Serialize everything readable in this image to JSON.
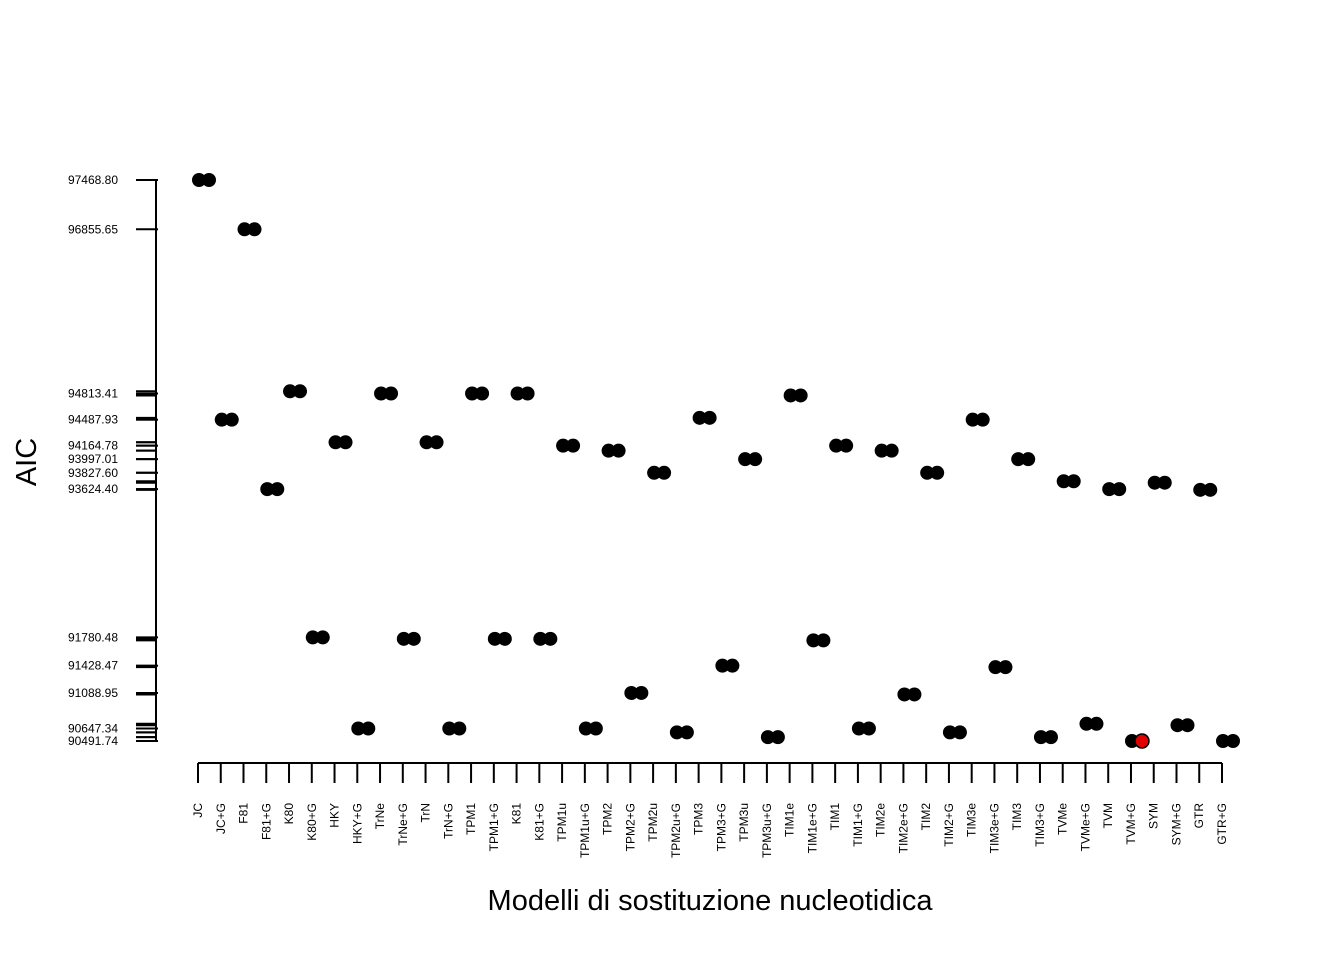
{
  "chart_data": {
    "type": "scatter",
    "xlabel": "Modelli di sostituzione nucleotidica",
    "ylabel": "AIC",
    "colors": {
      "point": "#000000",
      "highlight": "#e00000"
    },
    "highlight_index": 41,
    "ylim": [
      90491.74,
      97468.8
    ],
    "y_tick_labels": [
      {
        "value": 97468.8,
        "label": "97468.80"
      },
      {
        "value": 96855.65,
        "label": "96855.65"
      },
      {
        "value": 94813.41,
        "label": "94813.41"
      },
      {
        "value": 94487.93,
        "label": "94487.93"
      },
      {
        "value": 94164.78,
        "label": "94164.78"
      },
      {
        "value": 93997.01,
        "label": "93997.01"
      },
      {
        "value": 93827.6,
        "label": "93827.60"
      },
      {
        "value": 93624.4,
        "label": "93624.40"
      },
      {
        "value": 91780.48,
        "label": "91780.48"
      },
      {
        "value": 91428.47,
        "label": "91428.47"
      },
      {
        "value": 91088.95,
        "label": "91088.95"
      },
      {
        "value": 90647.34,
        "label": "90647.34"
      },
      {
        "value": 90491.74,
        "label": "90491.74"
      }
    ],
    "categories": [
      "JC",
      "JC+G",
      "F81",
      "F81+G",
      "K80",
      "K80+G",
      "HKY",
      "HKY+G",
      "TrNe",
      "TrNe+G",
      "TrN",
      "TrN+G",
      "TPM1",
      "TPM1+G",
      "K81",
      "K81+G",
      "TPM1u",
      "TPM1u+G",
      "TPM2",
      "TPM2+G",
      "TPM2u",
      "TPM2u+G",
      "TPM3",
      "TPM3+G",
      "TPM3u",
      "TPM3u+G",
      "TIM1e",
      "TIM1e+G",
      "TIM1",
      "TIM1+G",
      "TIM2e",
      "TIM2e+G",
      "TIM2",
      "TIM2+G",
      "TIM3e",
      "TIM3e+G",
      "TIM3",
      "TIM3+G",
      "TVMe",
      "TVMe+G",
      "TVM",
      "TVM+G",
      "SYM",
      "SYM+G",
      "GTR",
      "GTR+G"
    ],
    "values": [
      97468.8,
      94487.93,
      96855.65,
      93624.4,
      94841.21,
      91780.48,
      94207.08,
      90647.34,
      94813.41,
      91762.31,
      94207.08,
      90647.34,
      94813.41,
      91762.31,
      94813.41,
      91762.31,
      94164.78,
      90647.34,
      94102.56,
      91088.95,
      93827.6,
      90599.14,
      94511.08,
      91428.47,
      93997.01,
      90539.82,
      94788.95,
      91743.08,
      94164.78,
      90647.34,
      94102.56,
      91070.72,
      93827.6,
      90599.14,
      94487.93,
      91410.24,
      93997.01,
      90539.82,
      93722.16,
      90706.1,
      93624.4,
      90491.74,
      93703.91,
      90687.85,
      93615.27,
      90491.74
    ]
  }
}
